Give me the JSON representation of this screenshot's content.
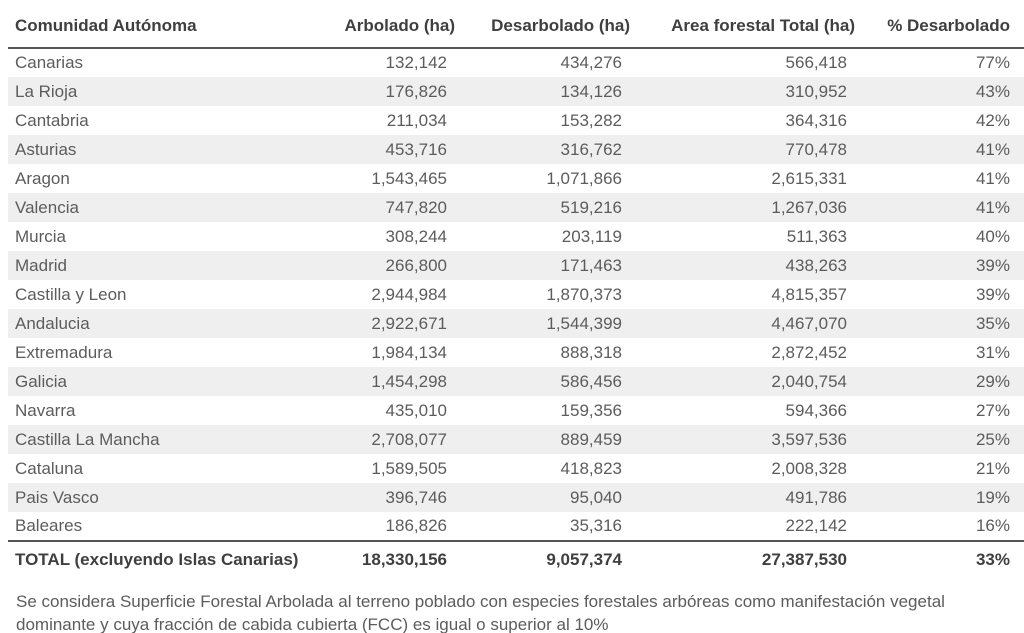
{
  "chart_data": {
    "type": "table",
    "columns": [
      "Comunidad Autónoma",
      "Arbolado (ha)",
      "Desarbolado (ha)",
      "Area forestal Total (ha)",
      "% Desarbolado"
    ],
    "rows": [
      [
        "Canarias",
        "132,142",
        "434,276",
        "566,418",
        "77%"
      ],
      [
        "La Rioja",
        "176,826",
        "134,126",
        "310,952",
        "43%"
      ],
      [
        "Cantabria",
        "211,034",
        "153,282",
        "364,316",
        "42%"
      ],
      [
        "Asturias",
        "453,716",
        "316,762",
        "770,478",
        "41%"
      ],
      [
        "Aragon",
        "1,543,465",
        "1,071,866",
        "2,615,331",
        "41%"
      ],
      [
        "Valencia",
        "747,820",
        "519,216",
        "1,267,036",
        "41%"
      ],
      [
        "Murcia",
        "308,244",
        "203,119",
        "511,363",
        "40%"
      ],
      [
        "Madrid",
        "266,800",
        "171,463",
        "438,263",
        "39%"
      ],
      [
        "Castilla y Leon",
        "2,944,984",
        "1,870,373",
        "4,815,357",
        "39%"
      ],
      [
        "Andalucia",
        "2,922,671",
        "1,544,399",
        "4,467,070",
        "35%"
      ],
      [
        "Extremadura",
        "1,984,134",
        "888,318",
        "2,872,452",
        "31%"
      ],
      [
        "Galicia",
        "1,454,298",
        "586,456",
        "2,040,754",
        "29%"
      ],
      [
        "Navarra",
        "435,010",
        "159,356",
        "594,366",
        "27%"
      ],
      [
        "Castilla La Mancha",
        "2,708,077",
        "889,459",
        "3,597,536",
        "25%"
      ],
      [
        "Cataluna",
        "1,589,505",
        "418,823",
        "2,008,328",
        "21%"
      ],
      [
        "Pais Vasco",
        "396,746",
        "95,040",
        "491,786",
        "19%"
      ],
      [
        "Baleares",
        "186,826",
        "35,316",
        "222,142",
        "16%"
      ]
    ],
    "total_row": [
      "TOTAL (excluyendo Islas Canarias)",
      "18,330,156",
      "9,057,374",
      "27,387,530",
      "33%"
    ],
    "footnote": "Se considera Superficie Forestal Arbolada al terreno poblado con especies forestales arbóreas como manifestación vegetal dominante y cuya fracción de cabida cubierta (FCC) es igual o superior al 10%",
    "layout": {
      "stripe_color": "#efefef",
      "rule_color": "#555555",
      "header_text_color": "#3f3f3f",
      "body_text_color": "#5c5c5c",
      "grid": "horizontal-rules-only",
      "zebra_striping": true
    }
  }
}
